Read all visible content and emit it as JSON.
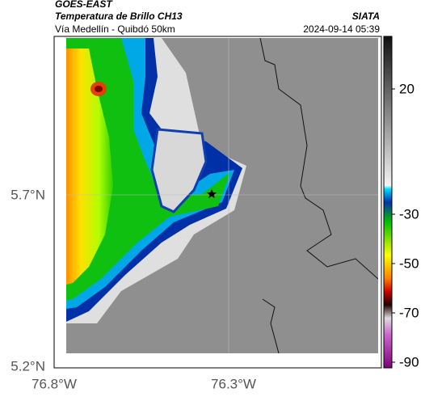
{
  "header": {
    "title": "GOES-EAST",
    "subtitle": "Temperatura de Brillo CH13",
    "location": "Vía Medellín - Quibdó 50km",
    "source": "SIATA",
    "timestamp": "2024-09-14 05:39"
  },
  "map": {
    "y_ticks": [
      "5.7°N",
      "5.2°N"
    ],
    "x_ticks": [
      "76.8°W",
      "76.3°W"
    ]
  },
  "colorbar": {
    "ticks": [
      20,
      -30,
      -50,
      -70,
      -90
    ]
  }
}
